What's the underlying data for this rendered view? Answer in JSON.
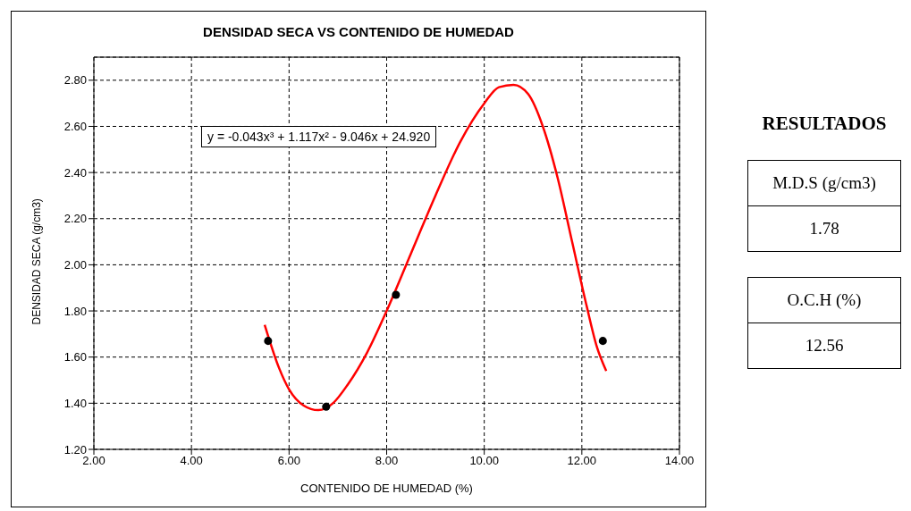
{
  "chart_data": [
    {
      "type": "scatter",
      "title": "DENSIDAD SECA VS CONTENIDO DE HUMEDAD",
      "xlabel": "CONTENIDO DE HUMEDAD (%)",
      "ylabel": "DENSIDAD SECA (g/cm3)",
      "xlim": [
        2,
        14
      ],
      "xticks": [
        {
          "value": 2,
          "label": "2.00"
        },
        {
          "value": 4,
          "label": "4.00"
        },
        {
          "value": 6,
          "label": "6.00"
        },
        {
          "value": 8,
          "label": "8.00"
        },
        {
          "value": 10,
          "label": "10.00"
        },
        {
          "value": 12,
          "label": "12.00"
        },
        {
          "value": 14,
          "label": "14.00"
        }
      ],
      "ylim": [
        1.2,
        2.9
      ],
      "yticks": [
        {
          "value": 1.2,
          "label": "1.20"
        },
        {
          "value": 1.4,
          "label": "1.40"
        },
        {
          "value": 1.6,
          "label": "1.60"
        },
        {
          "value": 1.8,
          "label": "1.80"
        },
        {
          "value": 2,
          "label": "2.00"
        },
        {
          "value": 2.2,
          "label": "2.20"
        },
        {
          "value": 2.4,
          "label": "2.40"
        },
        {
          "value": 2.6,
          "label": "2.60"
        },
        {
          "value": 2.8,
          "label": "2.80"
        }
      ],
      "grid": true,
      "annotations": [
        "y = -0.043x³ + 1.117x² - 9.046x + 24.920"
      ],
      "series": [
        {
          "type": "scatter",
          "color": "#000000",
          "marker": "circle",
          "x": [
            5.57,
            6.76,
            8.19,
            12.43
          ],
          "values": [
            1.67,
            1.385,
            1.87,
            1.67
          ]
        },
        {
          "type": "line",
          "color": "#ff0000",
          "marker": "none",
          "line_style": "solid",
          "x": [
            5.5,
            5.8,
            6.0,
            6.3,
            6.6,
            6.9,
            7.2,
            7.6,
            8.0,
            8.5,
            9.0,
            9.5,
            10.0,
            10.3,
            10.6,
            10.9,
            11.2,
            11.5,
            11.8,
            12.1,
            12.3,
            12.5
          ],
          "values": [
            1.74,
            1.55,
            1.46,
            1.39,
            1.37,
            1.4,
            1.48,
            1.62,
            1.8,
            2.05,
            2.3,
            2.53,
            2.7,
            2.77,
            2.78,
            2.74,
            2.6,
            2.38,
            2.1,
            1.82,
            1.65,
            1.54
          ]
        }
      ]
    },
    {
      "type": "other",
      "title": "RESULTADOS",
      "annotations": [
        "M.D.S (g/cm3)",
        "1.78",
        "O.C.H (%)",
        "12.56"
      ]
    }
  ]
}
